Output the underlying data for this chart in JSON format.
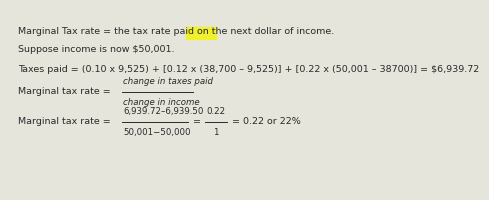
{
  "background_color": "#e5e5dc",
  "line1": "Marginal Tax rate = the tax rate paid on the next dollar of income.",
  "line2": "Suppose income is now $50,001.",
  "line3": "Taxes paid = (0.10 x 9,525) + [0.12 x (38,700 – 9,525)] + [0.22 x (50,001 – 38700)] = $6,939.72",
  "line4_left": "Marginal tax rate = ",
  "line4_num": "change in taxes paid",
  "line4_den": "change in income",
  "line5_left": "Marginal tax rate = ",
  "line5_num": "6,939.72–6,939.50",
  "line5_den": "50,001−50,000",
  "line5_mid_num": "0.22",
  "line5_mid_den": "1",
  "line5_end": "= 0.22 or 22%",
  "highlight_color": "#f0f030",
  "text_color": "#2a2a2a",
  "font_size": 6.8,
  "small_font_size": 6.2
}
